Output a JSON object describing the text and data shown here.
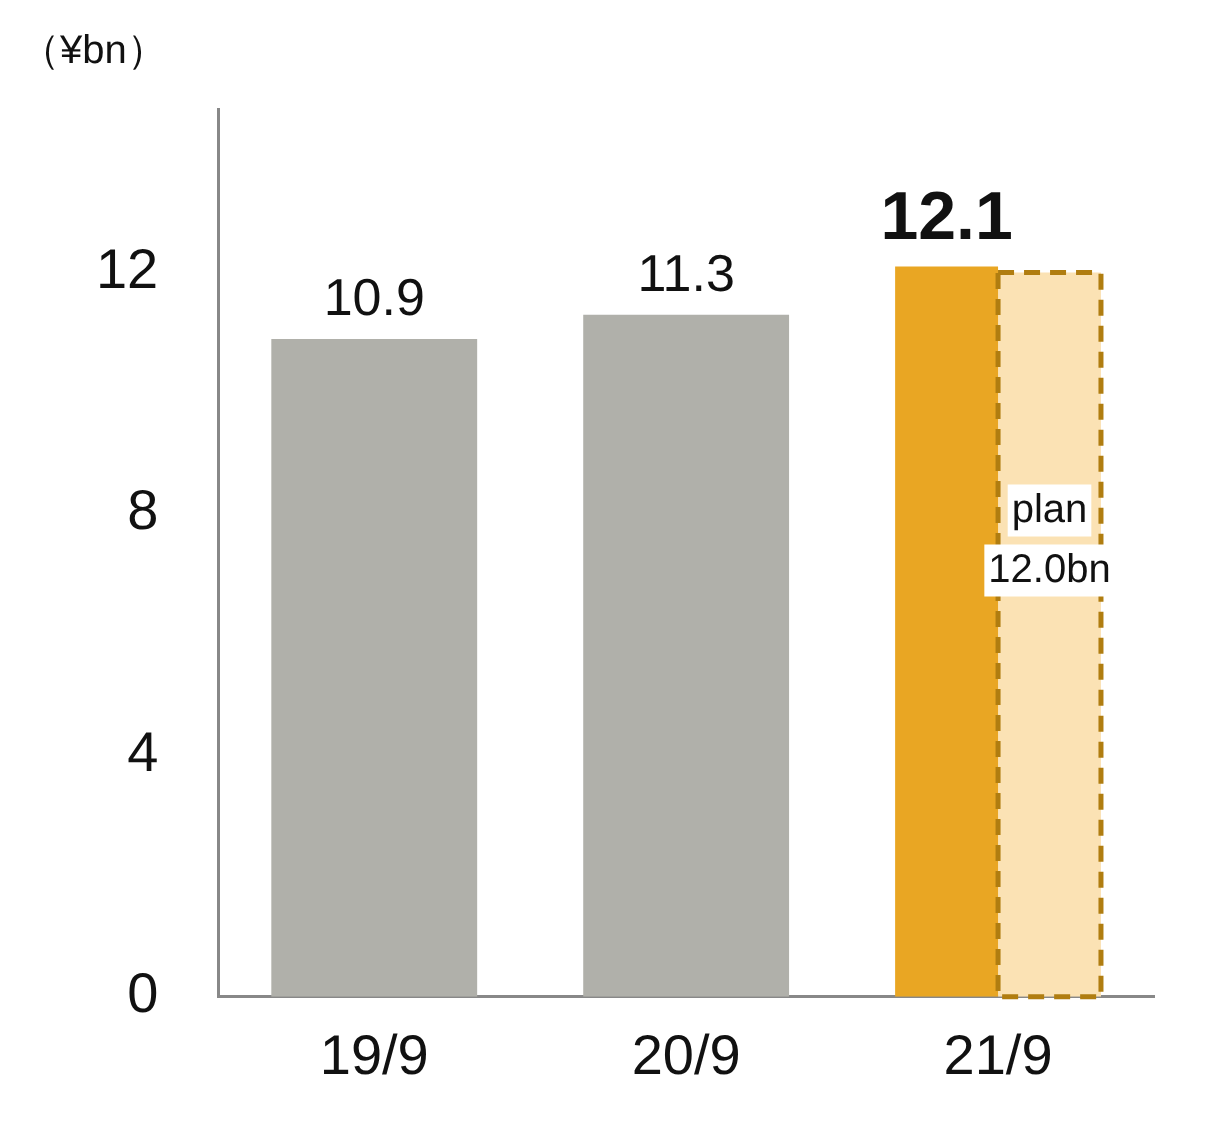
{
  "chart_data": {
    "type": "bar",
    "ylabel": "（¥bn）",
    "categories": [
      "19/9",
      "20/9",
      "21/9"
    ],
    "series": [
      {
        "values": [
          10.9,
          11.3,
          12.1
        ],
        "colors": [
          "#b0b0aa",
          "#b0b0aa",
          "#e9a623"
        ],
        "data_labels": true
      },
      {
        "values": [
          null,
          null,
          12.0
        ],
        "color": "#fbe2b4",
        "line_style": "dashed",
        "value_labels": [
          null,
          null,
          "plan 12.0bn"
        ]
      }
    ],
    "ylim": [
      0,
      14.7
    ],
    "yticks": [
      0,
      4,
      8,
      12
    ],
    "grid": false,
    "legend": false
  }
}
